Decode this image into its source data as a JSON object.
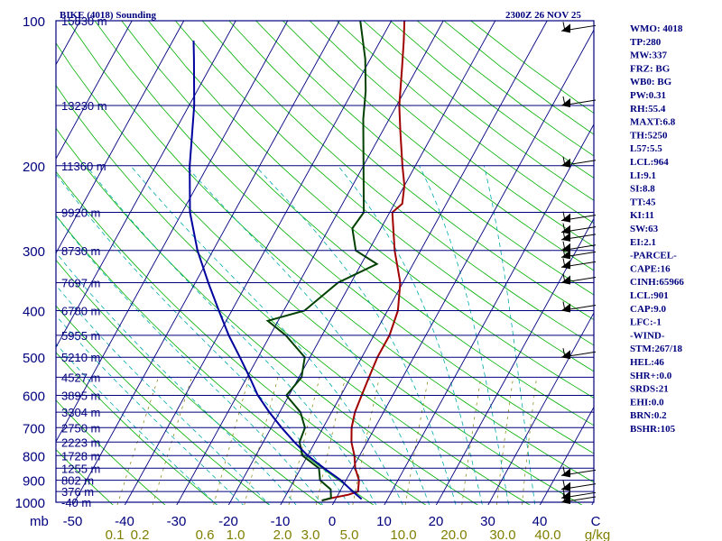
{
  "chart_data": {
    "type": "line",
    "title": "BIKE (4018) Sounding",
    "timestamp": "2300Z 26 NOV 25",
    "pressure_axis_unit": "mb",
    "pressure_ticks": [
      100,
      200,
      300,
      400,
      500,
      600,
      700,
      800,
      900,
      1000
    ],
    "pressure_tick_labels": [
      "100",
      "200",
      "300",
      "400",
      "500",
      "600",
      "700",
      "800",
      "900",
      "1000"
    ],
    "temperature_ticks": [
      -50,
      -40,
      -30,
      -20,
      -10,
      0,
      10,
      20,
      30,
      40
    ],
    "temperature_tick_labels": [
      "-50",
      "-40",
      "-30",
      "-20",
      "-10",
      "0",
      "10",
      "20",
      "30",
      "40"
    ],
    "temperature_unit": "C",
    "mixing_ratio_labels": [
      "0.1",
      "0.2",
      "0.6",
      "1.0",
      "2.0",
      "3.0",
      "5.0",
      "10.0",
      "20.0",
      "30.0",
      "40.0"
    ],
    "mixing_ratio_unit": "g/kg",
    "height_levels": [
      {
        "p": 100,
        "label": "15830 m"
      },
      {
        "p": 150,
        "label": "13230 m"
      },
      {
        "p": 200,
        "label": "11360 m"
      },
      {
        "p": 250,
        "label": "9920 m"
      },
      {
        "p": 300,
        "label": "8730 m"
      },
      {
        "p": 350,
        "label": "7697 m"
      },
      {
        "p": 400,
        "label": "6780 m"
      },
      {
        "p": 450,
        "label": "5955 m"
      },
      {
        "p": 500,
        "label": "5210 m"
      },
      {
        "p": 550,
        "label": "4527 m"
      },
      {
        "p": 600,
        "label": "3895 m"
      },
      {
        "p": 650,
        "label": "3304 m"
      },
      {
        "p": 700,
        "label": "2750 m"
      },
      {
        "p": 750,
        "label": "2223 m"
      },
      {
        "p": 800,
        "label": "1728 m"
      },
      {
        "p": 850,
        "label": "1255 m"
      },
      {
        "p": 900,
        "label": "802 m"
      },
      {
        "p": 950,
        "label": "376 m"
      },
      {
        "p": 1000,
        "label": "-40 m"
      }
    ],
    "series": [
      {
        "name": "temperature",
        "color": "#a00000",
        "points": [
          [
            -2.5,
            992
          ],
          [
            -0.5,
            978
          ],
          [
            2.0,
            965
          ],
          [
            3.5,
            950
          ],
          [
            2.5,
            900
          ],
          [
            0.5,
            850
          ],
          [
            -1.0,
            800
          ],
          [
            -3.0,
            750
          ],
          [
            -4.5,
            700
          ],
          [
            -5.5,
            650
          ],
          [
            -6.0,
            600
          ],
          [
            -6.5,
            550
          ],
          [
            -7.0,
            500
          ],
          [
            -7.0,
            450
          ],
          [
            -8.0,
            400
          ],
          [
            -10.5,
            350
          ],
          [
            -15.0,
            300
          ],
          [
            -19.5,
            250
          ],
          [
            -18.5,
            240
          ],
          [
            -20.0,
            220
          ],
          [
            -22.5,
            200
          ],
          [
            -26.5,
            170
          ],
          [
            -29.5,
            150
          ],
          [
            -33.0,
            125
          ],
          [
            -35.5,
            110
          ],
          [
            -37.5,
            100
          ]
        ]
      },
      {
        "name": "dewpoint",
        "color": "#004000",
        "points": [
          [
            -2.5,
            992
          ],
          [
            -1.0,
            980
          ],
          [
            -2.0,
            940
          ],
          [
            -5.0,
            900
          ],
          [
            -6.5,
            850
          ],
          [
            -11.0,
            800
          ],
          [
            -13.0,
            750
          ],
          [
            -13.5,
            700
          ],
          [
            -16.0,
            650
          ],
          [
            -20.5,
            600
          ],
          [
            -19.5,
            550
          ],
          [
            -21.0,
            500
          ],
          [
            -27.0,
            450
          ],
          [
            -32.0,
            420
          ],
          [
            -26.0,
            400
          ],
          [
            -22.5,
            350
          ],
          [
            -17.0,
            320
          ],
          [
            -22.5,
            300
          ],
          [
            -25.5,
            270
          ],
          [
            -25.0,
            250
          ],
          [
            -30.0,
            200
          ],
          [
            -35.0,
            160
          ],
          [
            -37.5,
            140
          ],
          [
            -41.0,
            120
          ],
          [
            -46.0,
            100
          ]
        ]
      },
      {
        "name": "parcel",
        "color": "#00009f",
        "points": [
          [
            5.0,
            985
          ],
          [
            2.5,
            950
          ],
          [
            -1.0,
            900
          ],
          [
            -5.5,
            850
          ],
          [
            -10.0,
            800
          ],
          [
            -14.0,
            750
          ],
          [
            -18.0,
            700
          ],
          [
            -22.0,
            650
          ],
          [
            -26.0,
            600
          ],
          [
            -29.5,
            550
          ],
          [
            -33.5,
            500
          ],
          [
            -38.0,
            450
          ],
          [
            -42.5,
            400
          ],
          [
            -47.5,
            350
          ],
          [
            -53.0,
            300
          ],
          [
            -58.5,
            250
          ],
          [
            -63.5,
            200
          ],
          [
            -69.0,
            150
          ],
          [
            -74.0,
            120
          ],
          [
            -76.0,
            110
          ]
        ]
      }
    ],
    "wind_barbs_pressures": [
      105,
      150,
      200,
      260,
      275,
      285,
      300,
      310,
      325,
      350,
      400,
      500,
      880,
      940,
      980,
      1000
    ]
  },
  "indices": [
    "WMO: 4018",
    "TP:280",
    "MW:337",
    "FRZ: BG",
    "WB0: BG",
    "PW:0.31",
    "RH:55.4",
    "MAXT:6.8",
    "TH:5250",
    "L57:5.5",
    "LCL:964",
    "LI:9.1",
    "SI:8.8",
    "TT:45",
    "KI:11",
    "SW:63",
    "EI:2.1",
    "-PARCEL-",
    "CAPE:16",
    "CINH:65966",
    "LCL:901",
    "CAP:9.0",
    "LFC:-1",
    "-WIND-",
    "STM:267/18",
    "HEL:46",
    "SHR+:0.0",
    "SRDS:21",
    "EHI:0.0",
    "BRN:0.2",
    "BSHR:105"
  ],
  "colors": {
    "isobar": "#00007f",
    "isotherm": "#00007f",
    "dry_adiabat": "#00b000",
    "moist_adiabat": "#00aaaa",
    "mixing_ratio": "#7f7f00",
    "temperature": "#a00000",
    "dewpoint": "#004000",
    "parcel": "#00009f"
  }
}
